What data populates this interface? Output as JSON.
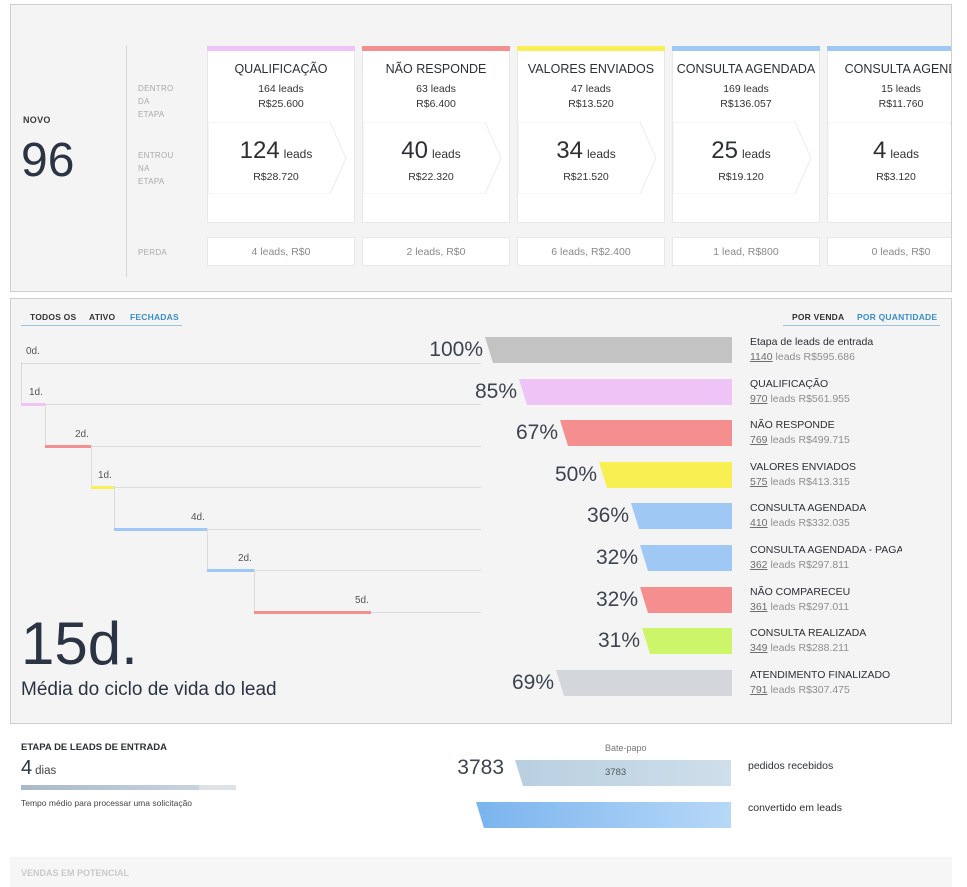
{
  "pipeline": {
    "novo_label": "NOVO",
    "novo_count": "96",
    "row_labels": {
      "dentro": "DENTRO\nDA\nETAPA",
      "entrou": "ENTROU\nNA\nETAPA",
      "perda": "PERDA"
    },
    "stages": [
      {
        "name": "QUALIFICAÇÃO",
        "color": "#eec3f5",
        "leads": "164 leads",
        "value": "R$25.600",
        "entered_count": "124",
        "entered_unit": "leads",
        "entered_value": "R$28.720",
        "loss": "4 leads, R$0"
      },
      {
        "name": "NÃO RESPONDE",
        "color": "#f58f8f",
        "leads": "63 leads",
        "value": "R$6.400",
        "entered_count": "40",
        "entered_unit": "leads",
        "entered_value": "R$22.320",
        "loss": "2 leads, R$0"
      },
      {
        "name": "VALORES ENVIADOS",
        "color": "#f8ef52",
        "leads": "47 leads",
        "value": "R$13.520",
        "entered_count": "34",
        "entered_unit": "leads",
        "entered_value": "R$21.520",
        "loss": "6 leads, R$2.400"
      },
      {
        "name": "CONSULTA AGENDADA",
        "color": "#9fc9f4",
        "leads": "169 leads",
        "value": "R$136.057",
        "entered_count": "25",
        "entered_unit": "leads",
        "entered_value": "R$19.120",
        "loss": "1 lead, R$800"
      },
      {
        "name": "CONSULTA AGEND",
        "color": "#9fc9f4",
        "leads": "15 leads",
        "value": "R$11.760",
        "entered_count": "4",
        "entered_unit": "leads",
        "entered_value": "R$3.120",
        "loss": "0 leads, R$0"
      }
    ]
  },
  "funnel": {
    "tabs": [
      "TODOS OS",
      "ATIVO",
      "FECHADAS"
    ],
    "active_tab": "FECHADAS",
    "right_tabs": [
      "POR VENDA",
      "POR QUANTIDADE"
    ],
    "active_right_tab": "POR QUANTIDADE",
    "cycle_days": "15d.",
    "cycle_label": "Média do ciclo de vida do lead",
    "leads_word": "leads",
    "days": [
      {
        "label": "0d.",
        "color": "#ffffff"
      },
      {
        "label": "1d.",
        "color": "#eec3f5"
      },
      {
        "label": "2d.",
        "color": "#f58f8f"
      },
      {
        "label": "1d.",
        "color": "#f8ef52"
      },
      {
        "label": "4d.",
        "color": "#9fc9f4"
      },
      {
        "label": "2d.",
        "color": "#9fc9f4"
      },
      {
        "label": "5d.",
        "color": "#f58f8f"
      }
    ],
    "rows": [
      {
        "pct": "100%",
        "percent_value": 100,
        "color": "#c3c3c3",
        "title": "Etapa de leads de entrada",
        "count": "1140",
        "value": "R$595.686"
      },
      {
        "pct": "85%",
        "percent_value": 85,
        "color": "#eec3f5",
        "title": "QUALIFICAÇÃO",
        "count": "970",
        "value": "R$561.955"
      },
      {
        "pct": "67%",
        "percent_value": 67,
        "color": "#f58f8f",
        "title": "NÃO RESPONDE",
        "count": "769",
        "value": "R$499.715"
      },
      {
        "pct": "50%",
        "percent_value": 50,
        "color": "#f8ef52",
        "title": "VALORES ENVIADOS",
        "count": "575",
        "value": "R$413.315"
      },
      {
        "pct": "36%",
        "percent_value": 36,
        "color": "#9fc9f4",
        "title": "CONSULTA AGENDADA",
        "count": "410",
        "value": "R$332.035"
      },
      {
        "pct": "32%",
        "percent_value": 32,
        "color": "#9fc9f4",
        "title": "CONSULTA AGENDADA - PAGA",
        "count": "362",
        "value": "R$297.811"
      },
      {
        "pct": "32%",
        "percent_value": 32,
        "color": "#f58f8f",
        "title": "NÃO COMPARECEU",
        "count": "361",
        "value": "R$297.011"
      },
      {
        "pct": "31%",
        "percent_value": 31,
        "color": "#cdf56a",
        "title": "CONSULTA REALIZADA",
        "count": "349",
        "value": "R$288.211"
      },
      {
        "pct": "69%",
        "percent_value": 69,
        "color": "#d3d6da",
        "title": "ATENDIMENTO FINALIZADO",
        "count": "791",
        "value": "R$307.475"
      }
    ]
  },
  "entry": {
    "title": "ETAPA DE LEADS DE ENTRADA",
    "days": "4",
    "days_unit": "dias",
    "note": "Tempo médio para processar uma solicitação",
    "progress": 0.83,
    "chat_label": "Bate-papo",
    "chat_count": "3783",
    "chat_inner": "3783",
    "received_label": "pedidos recebidos",
    "converted_label": "convertido em leads"
  },
  "next_section": {
    "title": "VENDAS EM POTENCIAL"
  }
}
